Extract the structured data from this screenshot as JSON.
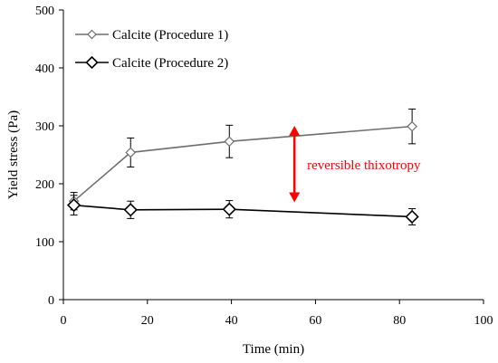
{
  "chart_data": {
    "type": "line",
    "xlabel": "Time (min)",
    "ylabel": "Yield stress (Pa)",
    "xlim": [
      0,
      100
    ],
    "ylim": [
      0,
      500
    ],
    "x_ticks": [
      "0",
      "20",
      "40",
      "60",
      "80",
      "100"
    ],
    "y_ticks": [
      "0",
      "100",
      "200",
      "300",
      "400",
      "500"
    ],
    "grid": false,
    "legend_position": "top-left",
    "series": [
      {
        "name": "Calcite (Procedure 1)",
        "color": "#6e6e6e",
        "marker": "open-diamond",
        "points": [
          {
            "x": 2.5,
            "y": 170,
            "err": 15
          },
          {
            "x": 16,
            "y": 254,
            "err": 25
          },
          {
            "x": 39.5,
            "y": 273,
            "err": 28
          },
          {
            "x": 83,
            "y": 299,
            "err": 30
          }
        ]
      },
      {
        "name": "Calcite (Procedure 2)",
        "color": "#000000",
        "marker": "open-diamond",
        "points": [
          {
            "x": 2.5,
            "y": 163,
            "err": 17
          },
          {
            "x": 16,
            "y": 155,
            "err": 15
          },
          {
            "x": 39.5,
            "y": 156,
            "err": 15
          },
          {
            "x": 83,
            "y": 143,
            "err": 14
          }
        ]
      }
    ],
    "annotation": {
      "text": "reversible thixotropy",
      "color": "#ff0000",
      "arrow_x": 55,
      "arrow_y_top": 300,
      "arrow_y_bottom": 168,
      "text_x": 58,
      "text_y": 233
    }
  }
}
